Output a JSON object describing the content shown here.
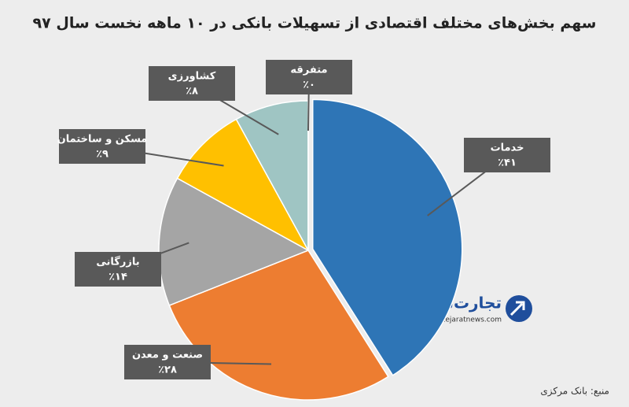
{
  "chart_data": {
    "type": "pie",
    "title": "سهم بخش‌های مختلف اقتصادی از تسهیلات بانکی در ۱۰ ماهه نخست سال ۹۷",
    "categories": [
      "خدمات",
      "صنعت و معدن",
      "بازرگانی",
      "مسکن و ساختمان",
      "کشاورزی",
      "متفرقه"
    ],
    "values": [
      41,
      28,
      14,
      9,
      8,
      0
    ],
    "value_labels": [
      "٪۴۱",
      "٪۲۸",
      "٪۱۴",
      "٪۹",
      "٪۸",
      "٪۰"
    ],
    "colors": [
      "#2e75b6",
      "#ed7d31",
      "#a5a5a5",
      "#ffc000",
      "#9fc5c3",
      "#70ad47"
    ],
    "source": "منبع: بانک مرکزی",
    "logo": "تجارت‌نیوز",
    "logo_url": "www.tejaratnews.com"
  }
}
